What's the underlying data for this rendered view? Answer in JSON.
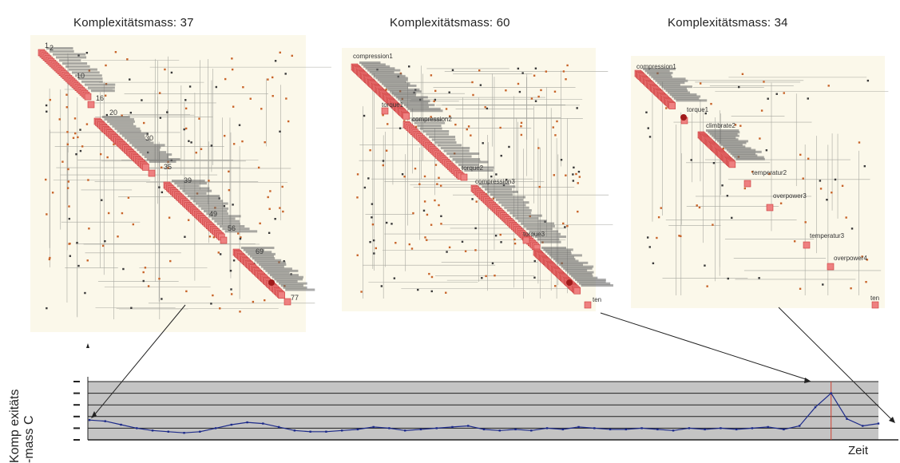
{
  "panels": [
    {
      "title": "Komplexitätsmass: 37",
      "labels": [
        "1",
        "2",
        "10",
        "16",
        "20",
        "30",
        "35",
        "39",
        "49",
        "56",
        "69",
        "77"
      ]
    },
    {
      "title": "Komplexitätsmass: 60",
      "labels": [
        "compression1",
        "torque1",
        "compression2",
        "torque2",
        "compression3",
        "torque3",
        "ten"
      ]
    },
    {
      "title": "Komplexitätsmass: 34",
      "labels": [
        "compression1",
        "torque1",
        "climbrate2",
        "temperatur2",
        "overpower3",
        "temperatur3",
        "overpower4",
        "ten"
      ]
    }
  ],
  "axis": {
    "ylabel_line1": "Komp exitäts",
    "ylabel_line2": "-mass C",
    "xlabel": "Zeit"
  },
  "chart_data": {
    "type": "line",
    "title": "",
    "xlabel": "Zeit",
    "ylabel": "Komplexitätsmass C",
    "x": [
      0,
      2,
      4,
      6,
      8,
      10,
      12,
      14,
      16,
      18,
      20,
      22,
      24,
      26,
      28,
      30,
      32,
      34,
      36,
      38,
      40,
      42,
      44,
      46,
      48,
      50,
      52,
      54,
      56,
      58,
      60,
      62,
      64,
      66,
      68,
      70,
      72,
      74,
      76,
      78,
      80,
      82,
      84,
      86,
      88,
      90,
      92,
      94,
      96,
      98,
      100
    ],
    "series": [
      {
        "values": [
          37,
          36,
          33,
          30,
          28,
          27,
          26,
          27,
          30,
          33,
          35,
          34,
          31,
          28,
          27,
          27,
          28,
          29,
          31,
          30,
          28,
          29,
          30,
          31,
          32,
          29,
          28,
          29,
          28,
          30,
          29,
          31,
          30,
          29,
          29,
          30,
          29,
          28,
          30,
          29,
          30,
          29,
          30,
          31,
          29,
          32,
          48,
          60,
          38,
          32,
          34
        ]
      }
    ],
    "ylim": [
      20,
      70
    ],
    "grid": true,
    "annotations": [
      "Komplexitätsmass: 37",
      "Komplexitätsmass: 60",
      "Komplexitätsmass: 34"
    ]
  }
}
